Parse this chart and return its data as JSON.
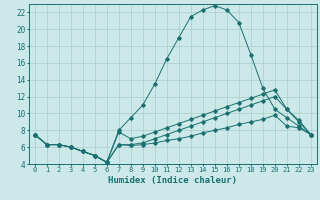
{
  "xlabel": "Humidex (Indice chaleur)",
  "background_color": "#cce8e8",
  "grid_color": "#aacccc",
  "line_color": "#1a7070",
  "xlim": [
    -0.5,
    23.5
  ],
  "ylim": [
    4,
    23
  ],
  "xticks": [
    0,
    1,
    2,
    3,
    4,
    5,
    6,
    7,
    8,
    9,
    10,
    11,
    12,
    13,
    14,
    15,
    16,
    17,
    18,
    19,
    20,
    21,
    22,
    23
  ],
  "yticks": [
    4,
    6,
    8,
    10,
    12,
    14,
    16,
    18,
    20,
    22
  ],
  "s0_y": [
    7.5,
    6.3,
    6.3,
    6.0,
    5.5,
    5.0,
    4.2,
    8.0,
    9.5,
    11.0,
    13.5,
    16.5,
    19.0,
    21.5,
    22.3,
    22.8,
    22.3,
    20.8,
    17.0,
    13.0,
    10.5,
    9.5,
    8.5,
    7.5
  ],
  "s1_y": [
    7.5,
    6.3,
    6.3,
    6.0,
    5.5,
    5.0,
    4.2,
    6.3,
    6.2,
    6.3,
    6.5,
    6.8,
    7.0,
    7.3,
    7.7,
    8.0,
    8.3,
    8.7,
    9.0,
    9.3,
    9.8,
    8.5,
    8.3,
    7.5
  ],
  "s2_y": [
    7.5,
    6.3,
    6.3,
    6.0,
    5.5,
    5.0,
    4.2,
    6.3,
    6.3,
    6.5,
    7.0,
    7.5,
    8.0,
    8.5,
    9.0,
    9.5,
    10.0,
    10.5,
    11.0,
    11.5,
    12.0,
    10.5,
    9.0,
    7.5
  ],
  "s3_y": [
    7.5,
    6.3,
    6.3,
    6.0,
    5.5,
    5.0,
    4.2,
    7.8,
    7.0,
    7.3,
    7.8,
    8.3,
    8.8,
    9.3,
    9.8,
    10.3,
    10.8,
    11.3,
    11.8,
    12.3,
    12.8,
    10.5,
    9.2,
    7.5
  ]
}
